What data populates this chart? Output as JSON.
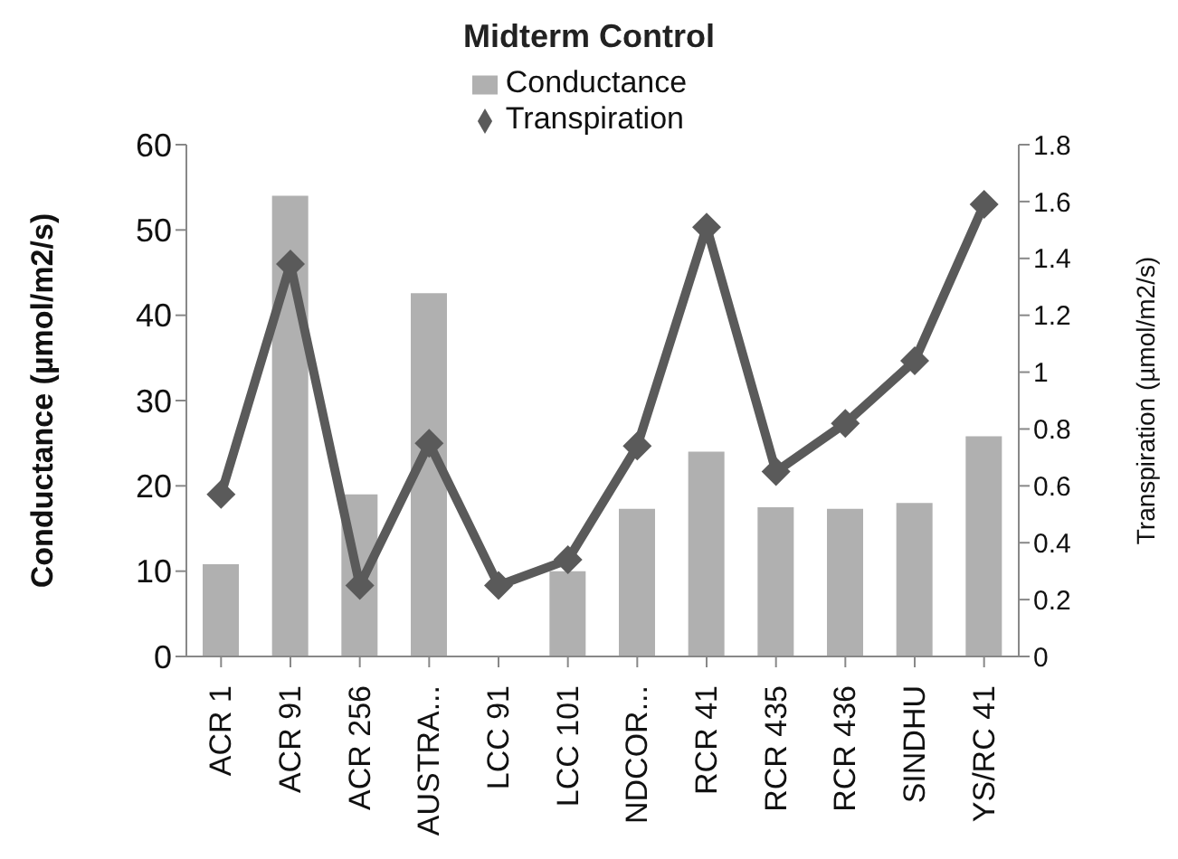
{
  "chart_data": {
    "type": "bar",
    "title": "Midterm Control",
    "ylabel": "Conductance (µmol/m2/s)",
    "y2label": "Transpiration (µmol/m2/s)",
    "categories": [
      "ACR 1",
      "ACR 91",
      "ACR 256",
      "AUSTRA...",
      "LCC 91",
      "LCC 101",
      "NDCOR...",
      "RCR 41",
      "RCR 435",
      "RCR 436",
      "SINDHU",
      "YS/RC 41"
    ],
    "series": [
      {
        "name": "Conductance",
        "color": "#b0b0b0",
        "values": [
          10.8,
          54,
          19,
          42.6,
          null,
          10,
          17.3,
          24,
          17.5,
          17.3,
          18,
          25.8
        ]
      },
      {
        "name": "Transpiration",
        "type": "line",
        "axis": "y2",
        "color": "#5a5a5a",
        "values": [
          0.57,
          1.38,
          0.25,
          0.75,
          0.25,
          0.34,
          0.74,
          1.51,
          0.65,
          0.82,
          1.04,
          1.59
        ]
      }
    ],
    "ylim": [
      0,
      60
    ],
    "yticks": [
      0,
      10,
      20,
      30,
      40,
      50,
      60
    ],
    "y2lim": [
      0,
      1.8
    ],
    "y2ticks": [
      0,
      0.2,
      0.4,
      0.6,
      0.8,
      1,
      1.2,
      1.4,
      1.6,
      1.8
    ],
    "marker": "diamond",
    "legend": "top"
  }
}
